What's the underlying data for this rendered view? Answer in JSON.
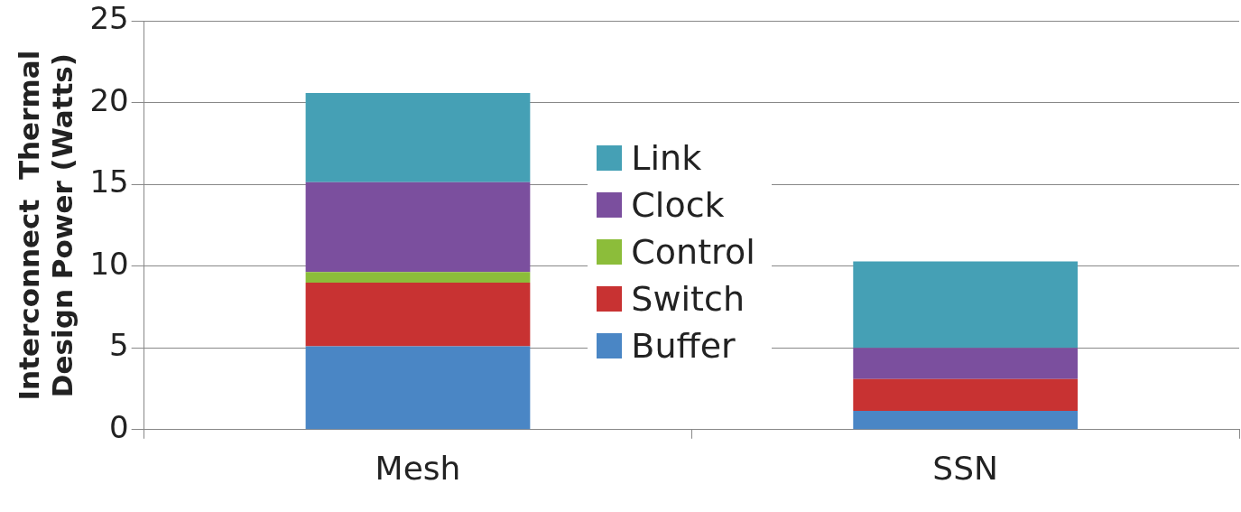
{
  "chart_data": {
    "type": "bar",
    "ylabel": "Interconnect  Thermal\nDesign Power (Watts)",
    "categories": [
      "Mesh",
      "SSN"
    ],
    "stacked": true,
    "series": [
      {
        "name": "Buffer",
        "color": "#4a86c5",
        "values": [
          5.1,
          1.15
        ]
      },
      {
        "name": "Switch",
        "color": "#c83232",
        "values": [
          3.9,
          1.95
        ]
      },
      {
        "name": "Control",
        "color": "#8cbd3a",
        "values": [
          0.65,
          0
        ]
      },
      {
        "name": "Clock",
        "color": "#7b4f9e",
        "values": [
          5.5,
          1.9
        ]
      },
      {
        "name": "Link",
        "color": "#45a0b5",
        "values": [
          5.45,
          5.3
        ]
      }
    ],
    "ylim": [
      0,
      25
    ],
    "yticks": [
      0,
      5,
      10,
      15,
      20,
      25
    ],
    "grid": "y",
    "legend": "center"
  }
}
